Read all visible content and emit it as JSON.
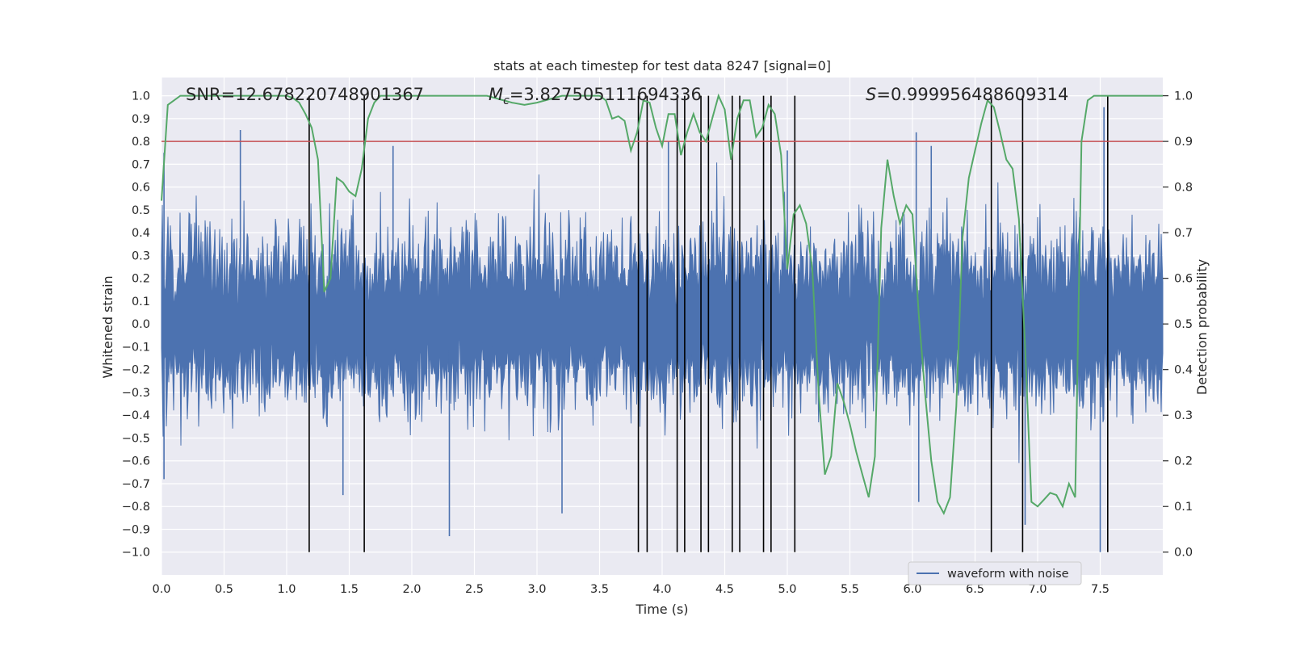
{
  "chart_data": {
    "type": "line",
    "title": "stats at each timestep for test data 8247 [signal=0]",
    "xlabel": "Time (s)",
    "ylabel_left": "Whitened strain",
    "ylabel_right": "Detection probability",
    "xlim": [
      0.0,
      8.0
    ],
    "ylim_left": [
      -1.1,
      1.08
    ],
    "ylim_right": [
      -0.05,
      1.04
    ],
    "x_ticks": [
      "0.0",
      "0.5",
      "1.0",
      "1.5",
      "2.0",
      "2.5",
      "3.0",
      "3.5",
      "4.0",
      "4.5",
      "5.0",
      "5.5",
      "6.0",
      "6.5",
      "7.0",
      "7.5"
    ],
    "y_ticks_left": [
      "1.0",
      "0.9",
      "0.8",
      "0.7",
      "0.6",
      "0.5",
      "0.4",
      "0.3",
      "0.2",
      "0.1",
      "0.0",
      "−0.1",
      "−0.2",
      "−0.3",
      "−0.4",
      "−0.5",
      "−0.6",
      "−0.7",
      "−0.8",
      "−0.9",
      "−1.0"
    ],
    "y_ticks_right": [
      "1.0",
      "0.9",
      "0.8",
      "0.7",
      "0.6",
      "0.5",
      "0.4",
      "0.3",
      "0.2",
      "0.1",
      "0.0"
    ],
    "annotations": {
      "snr": "SNR=12.678220748901367",
      "mc_symbol": "M",
      "mc_subscript": "c",
      "mc_value": "=3.827505111694336",
      "s_symbol": "S",
      "s_value": "=0.999956488609314"
    },
    "legend": [
      "waveform with noise"
    ],
    "threshold_right": 0.9,
    "detection_times": [
      1.18,
      1.62,
      3.81,
      3.88,
      4.12,
      4.18,
      4.31,
      4.37,
      4.56,
      4.62,
      4.81,
      4.87,
      5.06,
      6.63,
      6.88,
      7.56
    ],
    "waveform": {
      "name": "waveform with noise",
      "typical_range": [
        -0.45,
        0.55
      ],
      "max": 0.95,
      "min": -1.0
    },
    "probability_series": {
      "name": "detection probability",
      "x": [
        0.0,
        0.05,
        0.1,
        0.15,
        0.2,
        0.3,
        0.4,
        0.5,
        0.6,
        0.7,
        0.8,
        0.9,
        1.0,
        1.05,
        1.1,
        1.15,
        1.2,
        1.25,
        1.3,
        1.35,
        1.4,
        1.45,
        1.5,
        1.55,
        1.6,
        1.65,
        1.7,
        1.75,
        1.8,
        1.9,
        2.0,
        2.2,
        2.4,
        2.6,
        2.8,
        2.9,
        3.0,
        3.2,
        3.4,
        3.5,
        3.55,
        3.6,
        3.65,
        3.7,
        3.75,
        3.8,
        3.85,
        3.9,
        3.95,
        4.0,
        4.05,
        4.1,
        4.15,
        4.2,
        4.25,
        4.3,
        4.35,
        4.4,
        4.45,
        4.5,
        4.55,
        4.6,
        4.65,
        4.7,
        4.75,
        4.8,
        4.85,
        4.9,
        4.95,
        5.0,
        5.05,
        5.1,
        5.15,
        5.2,
        5.25,
        5.3,
        5.35,
        5.4,
        5.45,
        5.5,
        5.55,
        5.6,
        5.65,
        5.7,
        5.75,
        5.8,
        5.85,
        5.9,
        5.95,
        6.0,
        6.05,
        6.1,
        6.15,
        6.2,
        6.25,
        6.3,
        6.35,
        6.4,
        6.45,
        6.5,
        6.55,
        6.6,
        6.65,
        6.7,
        6.75,
        6.8,
        6.85,
        6.9,
        6.95,
        7.0,
        7.05,
        7.1,
        7.15,
        7.2,
        7.25,
        7.3,
        7.35,
        7.4,
        7.45,
        7.5,
        7.55,
        7.6,
        7.65,
        7.7,
        7.75,
        7.8,
        7.85,
        7.9,
        7.95,
        8.0
      ],
      "y": [
        0.77,
        0.98,
        0.99,
        1.0,
        1.0,
        1.0,
        1.0,
        1.0,
        1.0,
        1.0,
        1.0,
        1.0,
        1.0,
        0.995,
        0.985,
        0.96,
        0.93,
        0.86,
        0.57,
        0.6,
        0.82,
        0.81,
        0.79,
        0.78,
        0.84,
        0.95,
        0.985,
        1.0,
        1.0,
        1.0,
        1.0,
        1.0,
        1.0,
        1.0,
        0.985,
        0.98,
        0.985,
        1.0,
        1.0,
        1.0,
        0.99,
        0.95,
        0.955,
        0.945,
        0.88,
        0.92,
        0.99,
        0.985,
        0.93,
        0.89,
        0.96,
        0.96,
        0.87,
        0.92,
        0.96,
        0.92,
        0.9,
        0.95,
        1.0,
        0.97,
        0.86,
        0.95,
        0.99,
        0.99,
        0.91,
        0.93,
        0.98,
        0.96,
        0.87,
        0.62,
        0.74,
        0.76,
        0.72,
        0.62,
        0.35,
        0.17,
        0.21,
        0.37,
        0.33,
        0.28,
        0.22,
        0.17,
        0.12,
        0.21,
        0.71,
        0.86,
        0.78,
        0.72,
        0.76,
        0.74,
        0.52,
        0.35,
        0.2,
        0.11,
        0.085,
        0.12,
        0.32,
        0.69,
        0.82,
        0.88,
        0.94,
        0.99,
        0.975,
        0.92,
        0.86,
        0.84,
        0.73,
        0.45,
        0.11,
        0.1,
        0.115,
        0.13,
        0.125,
        0.1,
        0.15,
        0.12,
        0.9,
        0.99,
        1.0,
        1.0,
        1.0,
        1.0,
        1.0,
        1.0,
        1.0,
        1.0,
        1.0,
        1.0,
        1.0,
        1.0
      ]
    },
    "colors": {
      "background": "#eaeaf2",
      "grid": "#ffffff",
      "waveform": "#4c72b0",
      "probability": "#55a868",
      "threshold": "#c44e52",
      "detection_line": "#000000"
    }
  }
}
